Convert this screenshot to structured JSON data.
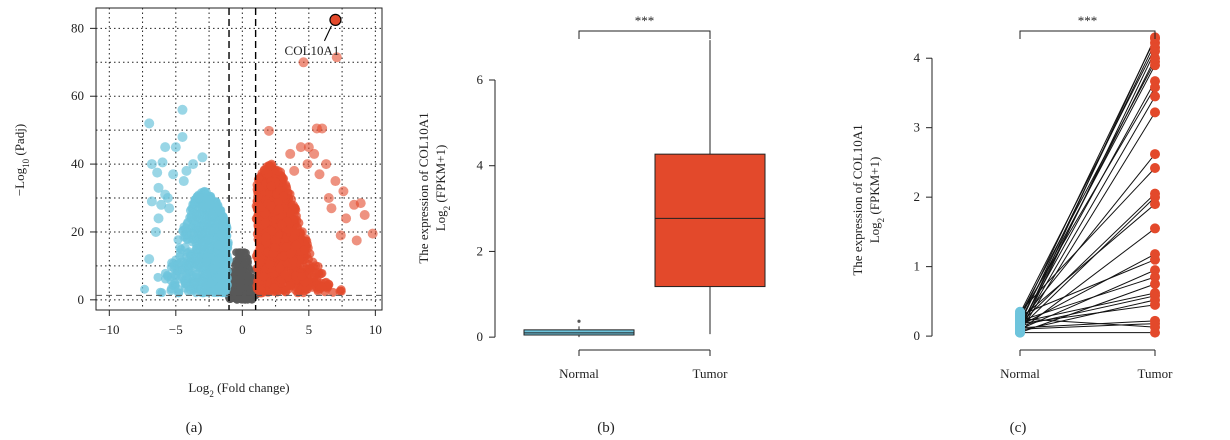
{
  "panels": [
    {
      "label": "(a)"
    },
    {
      "label": "(b)"
    },
    {
      "label": "(c)"
    }
  ],
  "chart_data": [
    {
      "type": "scatter",
      "panel": "(a)",
      "xlabel_main": "Log",
      "xlabel_sub": "2",
      "xlabel_rest": " (Fold change)",
      "ylabel_main": "−Log",
      "ylabel_sub": "10",
      "ylabel_rest": " (Padj)",
      "xlim": [
        -11,
        10.5
      ],
      "ylim": [
        -3,
        86
      ],
      "xticks": [
        -10,
        -5,
        0,
        5,
        10
      ],
      "yticks": [
        0,
        20,
        40,
        60,
        80
      ],
      "grid": true,
      "fc_thresholds": [
        -1,
        1
      ],
      "padj_threshold_line": 1.3,
      "highlight": {
        "label": "COL10A1",
        "x": 7.0,
        "y": 82.5
      },
      "colors": {
        "down": "#6EC4DC",
        "ns": "#595959",
        "up": "#E3492B"
      },
      "up_outliers": [
        [
          4.6,
          70
        ],
        [
          7.1,
          71.5
        ],
        [
          5.6,
          50.5
        ],
        [
          6.0,
          50.5
        ],
        [
          2.0,
          49.8
        ],
        [
          3.6,
          43
        ],
        [
          4.4,
          45
        ],
        [
          5.0,
          45
        ],
        [
          5.4,
          43
        ],
        [
          4.9,
          40
        ],
        [
          6.3,
          40
        ],
        [
          7.0,
          35
        ],
        [
          7.6,
          32
        ],
        [
          8.4,
          28
        ],
        [
          8.9,
          28.5
        ],
        [
          9.2,
          25
        ],
        [
          8.6,
          17.5
        ],
        [
          9.8,
          19.5
        ],
        [
          6.5,
          30
        ],
        [
          7.8,
          24
        ],
        [
          5.8,
          37
        ],
        [
          3.9,
          38
        ],
        [
          6.7,
          27
        ],
        [
          7.4,
          19
        ]
      ],
      "down_outliers": [
        [
          -7.0,
          52
        ],
        [
          -4.5,
          56
        ],
        [
          -5.0,
          45
        ],
        [
          -4.5,
          48
        ],
        [
          -5.8,
          45
        ],
        [
          -6.8,
          40
        ],
        [
          -6.0,
          40.5
        ],
        [
          -6.4,
          37.5
        ],
        [
          -3.7,
          40
        ],
        [
          -4.2,
          38
        ],
        [
          -5.2,
          37
        ],
        [
          -4.4,
          35
        ],
        [
          -5.8,
          31
        ],
        [
          -6.3,
          33
        ],
        [
          -6.8,
          29
        ],
        [
          -6.5,
          20
        ],
        [
          -7.0,
          12
        ],
        [
          -6.3,
          24
        ],
        [
          -5.6,
          30
        ],
        [
          -6.1,
          28
        ],
        [
          -3.0,
          42
        ],
        [
          -5.5,
          27
        ]
      ]
    },
    {
      "type": "box",
      "panel": "(b)",
      "ylabel_line1": "The expression of COL10A1",
      "ylabel_line2_main": "Log",
      "ylabel_line2_sub": "2",
      "ylabel_line2_rest": " (FPKM+1)",
      "categories": [
        "Normal",
        "Tumor"
      ],
      "ylim": [
        -0.3,
        7.4
      ],
      "yticks": [
        0,
        2,
        4,
        6
      ],
      "significance": "***",
      "boxes": [
        {
          "name": "Normal",
          "min": 0.0,
          "q1": 0.05,
          "median": 0.1,
          "q3": 0.17,
          "max": 0.25,
          "outliers": [
            0.37
          ],
          "color": "#6EC4DC"
        },
        {
          "name": "Tumor",
          "min": 0.07,
          "q1": 1.18,
          "median": 2.77,
          "q3": 4.27,
          "max": 6.93,
          "outliers": [],
          "color": "#E3492B"
        }
      ]
    },
    {
      "type": "paired",
      "panel": "(c)",
      "ylabel_line1": "The expression of COL10A1",
      "ylabel_line2_main": "Log",
      "ylabel_line2_sub": "2",
      "ylabel_line2_rest": " (FPKM+1)",
      "categories": [
        "Normal",
        "Tumor"
      ],
      "ylim": [
        -0.2,
        4.55
      ],
      "yticks": [
        0,
        1,
        2,
        3,
        4
      ],
      "significance": "***",
      "colors": {
        "Normal": "#6EC4DC",
        "Tumor": "#E3492B"
      },
      "pairs": [
        [
          0.05,
          0.05
        ],
        [
          0.25,
          0.13
        ],
        [
          0.1,
          0.18
        ],
        [
          0.12,
          0.22
        ],
        [
          0.18,
          0.45
        ],
        [
          0.08,
          0.52
        ],
        [
          0.15,
          0.58
        ],
        [
          0.2,
          0.62
        ],
        [
          0.05,
          0.75
        ],
        [
          0.22,
          0.85
        ],
        [
          0.1,
          0.95
        ],
        [
          0.3,
          1.1
        ],
        [
          0.15,
          1.18
        ],
        [
          0.08,
          1.55
        ],
        [
          0.25,
          1.9
        ],
        [
          0.12,
          2.0
        ],
        [
          0.18,
          2.05
        ],
        [
          0.35,
          2.42
        ],
        [
          0.2,
          2.62
        ],
        [
          0.06,
          3.22
        ],
        [
          0.1,
          3.45
        ],
        [
          0.28,
          3.58
        ],
        [
          0.14,
          3.67
        ],
        [
          0.22,
          3.9
        ],
        [
          0.3,
          3.95
        ],
        [
          0.12,
          4.0
        ],
        [
          0.05,
          4.1
        ],
        [
          0.33,
          4.15
        ],
        [
          0.18,
          4.22
        ],
        [
          0.25,
          4.28
        ],
        [
          0.09,
          4.3
        ]
      ]
    }
  ]
}
